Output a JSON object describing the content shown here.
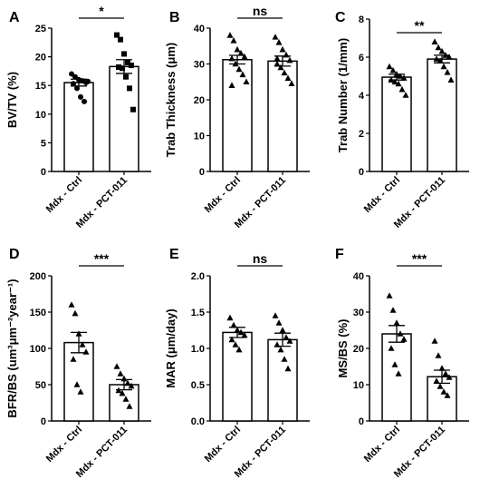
{
  "chart_data": [
    {
      "panel": "A",
      "type": "bar",
      "ylabel": "BV/TV (%)",
      "ylim": [
        0,
        25
      ],
      "yticks": [
        "0",
        "5",
        "10",
        "15",
        "20",
        "25"
      ],
      "ytick_values": [
        0,
        5,
        10,
        15,
        20,
        25
      ],
      "categories": [
        "Mdx - Ctrl",
        "Mdx - PCT-011"
      ],
      "values": [
        15.5,
        18.3
      ],
      "errors": [
        0.6,
        1.2
      ],
      "significance": "*",
      "points": [
        {
          "series": "Mdx - Ctrl",
          "marker": "circle",
          "values": [
            17.0,
            16.5,
            16.0,
            15.8,
            15.5,
            15.3,
            14.5,
            13.0,
            12.2,
            15.7
          ]
        },
        {
          "series": "Mdx - PCT-011",
          "marker": "square",
          "values": [
            23.8,
            23.0,
            20.5,
            19.0,
            18.5,
            18.2,
            18.0,
            16.5,
            14.5,
            10.8
          ]
        }
      ]
    },
    {
      "panel": "B",
      "type": "bar",
      "ylabel": "Trab Thickness (μm)",
      "ylim": [
        0,
        40
      ],
      "yticks": [
        "0",
        "10",
        "20",
        "30",
        "40"
      ],
      "ytick_values": [
        0,
        10,
        20,
        30,
        40
      ],
      "categories": [
        "Mdx - Ctrl",
        "Mdx - PCT-011"
      ],
      "values": [
        31.2,
        30.8
      ],
      "errors": [
        1.2,
        1.4
      ],
      "significance": "ns",
      "points": [
        {
          "series": "Mdx - Ctrl",
          "marker": "triangle",
          "values": [
            38.0,
            36.5,
            34.0,
            33.0,
            32.0,
            31.5,
            30.0,
            28.5,
            27.0,
            25.0,
            24.0
          ]
        },
        {
          "series": "Mdx - PCT-011",
          "marker": "triangle",
          "values": [
            37.5,
            36.0,
            34.0,
            32.5,
            31.0,
            30.0,
            29.0,
            27.5,
            26.0,
            24.5,
            31.5
          ]
        }
      ]
    },
    {
      "panel": "C",
      "type": "bar",
      "ylabel": "Trab Number (1/mm)",
      "ylim": [
        0,
        8
      ],
      "yticks": [
        "0",
        "2",
        "4",
        "6",
        "8"
      ],
      "ytick_values": [
        0,
        2,
        4,
        6,
        8
      ],
      "categories": [
        "Mdx - Ctrl",
        "Mdx - PCT-011"
      ],
      "values": [
        4.95,
        5.9
      ],
      "errors": [
        0.15,
        0.2
      ],
      "significance": "**",
      "points": [
        {
          "series": "Mdx - Ctrl",
          "marker": "triangle",
          "values": [
            5.5,
            5.3,
            5.1,
            5.0,
            4.9,
            4.8,
            4.7,
            4.6,
            4.3,
            4.0
          ]
        },
        {
          "series": "Mdx - PCT-011",
          "marker": "triangle",
          "values": [
            6.8,
            6.5,
            6.3,
            6.1,
            6.0,
            5.9,
            5.8,
            5.5,
            5.2,
            4.8
          ]
        }
      ]
    },
    {
      "panel": "D",
      "type": "bar",
      "ylabel": "BFR/BS (um³μm⁻²year⁻¹)",
      "ylim": [
        0,
        200
      ],
      "yticks": [
        "0",
        "50",
        "100",
        "150",
        "200"
      ],
      "ytick_values": [
        0,
        50,
        100,
        150,
        200
      ],
      "categories": [
        "Mdx - Ctrl",
        "Mdx - PCT-011"
      ],
      "values": [
        108,
        50
      ],
      "errors": [
        14,
        7
      ],
      "significance": "***",
      "points": [
        {
          "series": "Mdx - Ctrl",
          "marker": "triangle",
          "values": [
            160,
            148,
            120,
            105,
            95,
            85,
            50,
            40
          ]
        },
        {
          "series": "Mdx - PCT-011",
          "marker": "triangle",
          "values": [
            75,
            65,
            58,
            52,
            48,
            42,
            38,
            30,
            20
          ]
        }
      ]
    },
    {
      "panel": "E",
      "type": "bar",
      "ylabel": "MAR (μm/day)",
      "ylim": [
        0,
        2.0
      ],
      "yticks": [
        "0.0",
        "0.5",
        "1.0",
        "1.5",
        "2.0"
      ],
      "ytick_values": [
        0,
        0.5,
        1.0,
        1.5,
        2.0
      ],
      "categories": [
        "Mdx - Ctrl",
        "Mdx - PCT-011"
      ],
      "values": [
        1.22,
        1.12
      ],
      "errors": [
        0.07,
        0.09
      ],
      "significance": "ns",
      "points": [
        {
          "series": "Mdx - Ctrl",
          "marker": "triangle",
          "values": [
            1.42,
            1.32,
            1.25,
            1.22,
            1.18,
            1.12,
            1.05,
            0.98
          ]
        },
        {
          "series": "Mdx - PCT-011",
          "marker": "triangle",
          "values": [
            1.45,
            1.35,
            1.25,
            1.15,
            1.1,
            1.05,
            0.98,
            0.85,
            0.72
          ]
        }
      ]
    },
    {
      "panel": "F",
      "type": "bar",
      "ylabel": "MS/BS (%)",
      "ylim": [
        0,
        40
      ],
      "yticks": [
        "0",
        "10",
        "20",
        "30",
        "40"
      ],
      "ytick_values": [
        0,
        10,
        20,
        30,
        40
      ],
      "categories": [
        "Mdx - Ctrl",
        "Mdx - PCT-011"
      ],
      "values": [
        24,
        12.2
      ],
      "errors": [
        2.3,
        1.8
      ],
      "significance": "***",
      "points": [
        {
          "series": "Mdx - Ctrl",
          "marker": "triangle",
          "values": [
            34.5,
            30.5,
            27.0,
            24.0,
            22.5,
            20.0,
            15.5,
            13.0
          ]
        },
        {
          "series": "Mdx - PCT-011",
          "marker": "triangle",
          "values": [
            22.0,
            18.0,
            14.5,
            13.0,
            12.0,
            11.0,
            9.5,
            8.0,
            7.0
          ]
        }
      ]
    }
  ]
}
